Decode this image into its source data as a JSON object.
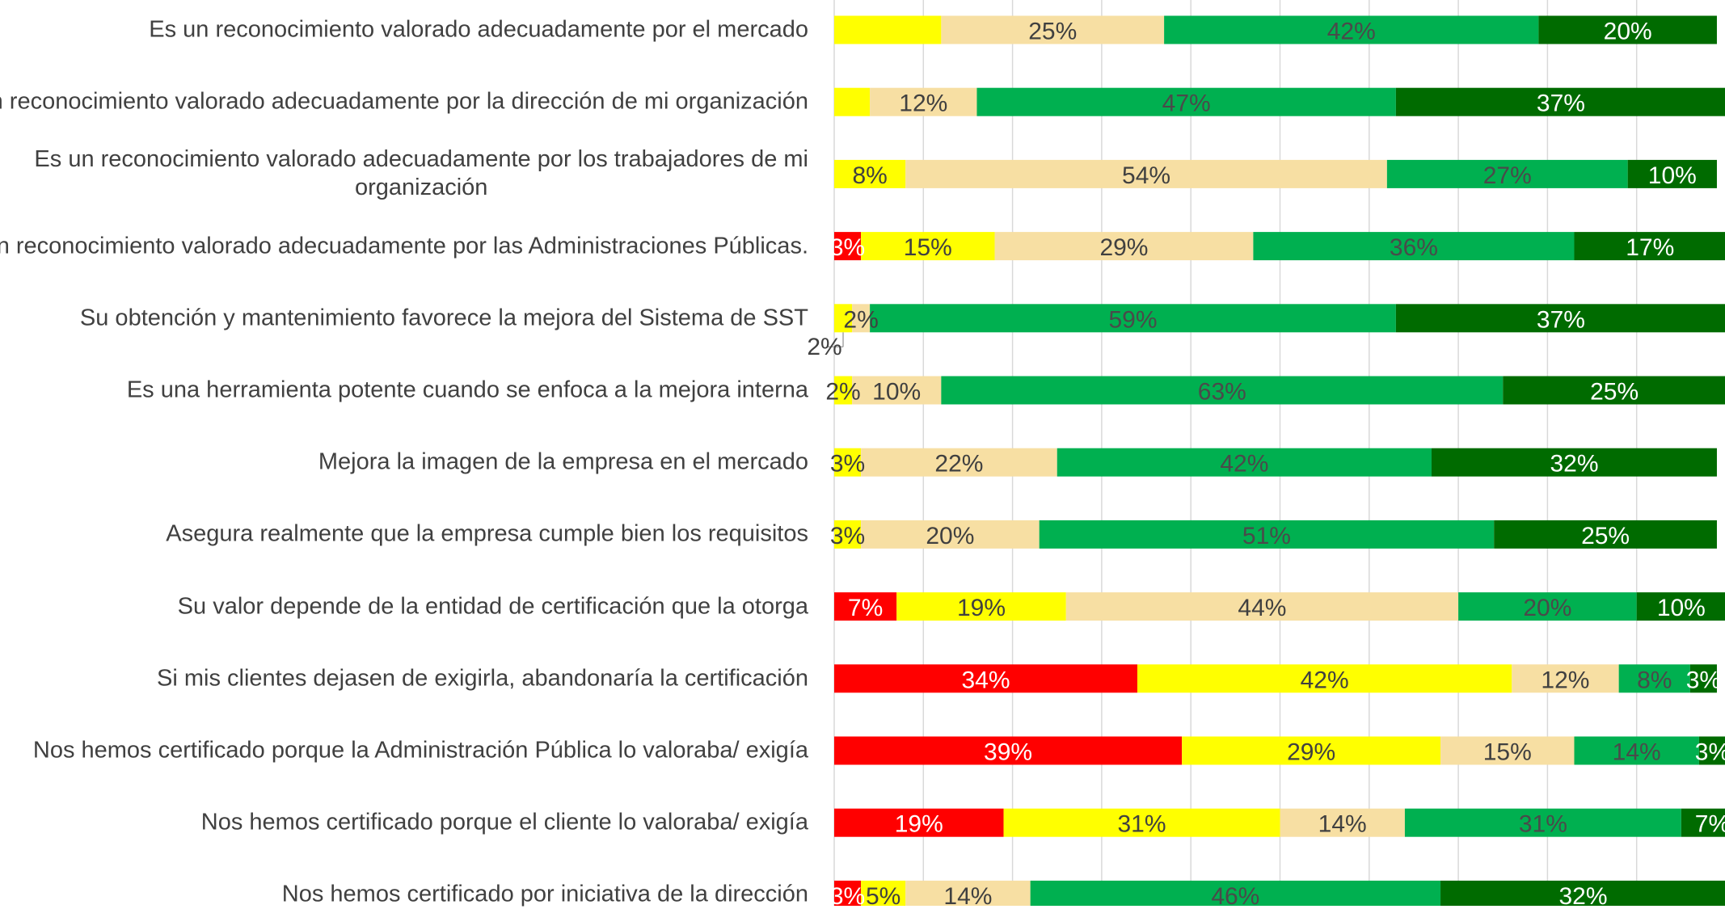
{
  "chart_data": {
    "type": "stacked_bar_horizontal",
    "categories": [
      "Es un reconocimiento valorado adecuadamente por el mercado",
      "Es un reconocimiento valorado adecuadamente por la dirección de mi organización",
      "Es un reconocimiento valorado adecuadamente por los trabajadores de mi\norganización",
      "Es un reconocimiento valorado adecuadamente por las Administraciones Públicas.",
      "Su obtención y mantenimiento favorece la mejora del Sistema de SST",
      "Es una herramienta potente cuando se enfoca a la mejora interna",
      "Mejora la imagen de la empresa en el mercado",
      "Asegura realmente que la empresa cumple bien los requisitos",
      "Su valor depende de la entidad de certificación que la otorga",
      "Si mis clientes dejasen de exigirla, abandonaría la certificación",
      "Nos hemos certificado porque la Administración Pública lo valoraba/ exigía",
      "Nos hemos certificado porque el cliente lo valoraba/ exigía",
      "Nos hemos certificado por iniciativa de la dirección"
    ],
    "series": [
      {
        "color": "#ff0000",
        "label_color": "#ffffff",
        "values": [
          0,
          0,
          0,
          3,
          0,
          0,
          0,
          0,
          7,
          34,
          39,
          19,
          3
        ],
        "value_labels": [
          null,
          null,
          null,
          "3%",
          null,
          null,
          null,
          null,
          "7%",
          "34%",
          "39%",
          "19%",
          "3%"
        ]
      },
      {
        "color": "#ffff00",
        "label_color": "#404040",
        "values": [
          12,
          4,
          8,
          15,
          2,
          2,
          3,
          3,
          19,
          42,
          29,
          31,
          5
        ],
        "value_labels": [
          null,
          null,
          "8%",
          "15%",
          "2%",
          "2%",
          "3%",
          "3%",
          "19%",
          "42%",
          "29%",
          "31%",
          "5%"
        ]
      },
      {
        "color": "#f7dfa3",
        "label_color": "#404040",
        "values": [
          25,
          12,
          54,
          29,
          2,
          10,
          22,
          20,
          44,
          12,
          15,
          14,
          14
        ],
        "value_labels": [
          "25%",
          "12%",
          "54%",
          "29%",
          "2%",
          "10%",
          "22%",
          "20%",
          "44%",
          "12%",
          "15%",
          "14%",
          "14%"
        ]
      },
      {
        "color": "#00b050",
        "label_color": "#4a4a4a",
        "values": [
          42,
          47,
          27,
          36,
          59,
          63,
          42,
          51,
          20,
          8,
          14,
          31,
          46
        ],
        "value_labels": [
          "42%",
          "47%",
          "27%",
          "36%",
          "59%",
          "63%",
          "42%",
          "51%",
          "20%",
          "8%",
          "14%",
          "31%",
          "46%"
        ]
      },
      {
        "color": "#006b00",
        "label_color": "#ffffff",
        "values": [
          20,
          37,
          10,
          17,
          37,
          25,
          32,
          25,
          10,
          3,
          3,
          7,
          32
        ],
        "value_labels": [
          "20%",
          "37%",
          "10%",
          "17%",
          "37%",
          "25%",
          "32%",
          "25%",
          "10%",
          "3%",
          "3%",
          "7%",
          "32%"
        ]
      }
    ],
    "xlim": [
      0,
      100
    ],
    "xticks": [
      0,
      10,
      20,
      30,
      40,
      50,
      60,
      70,
      80,
      90,
      100
    ],
    "grid": true
  }
}
